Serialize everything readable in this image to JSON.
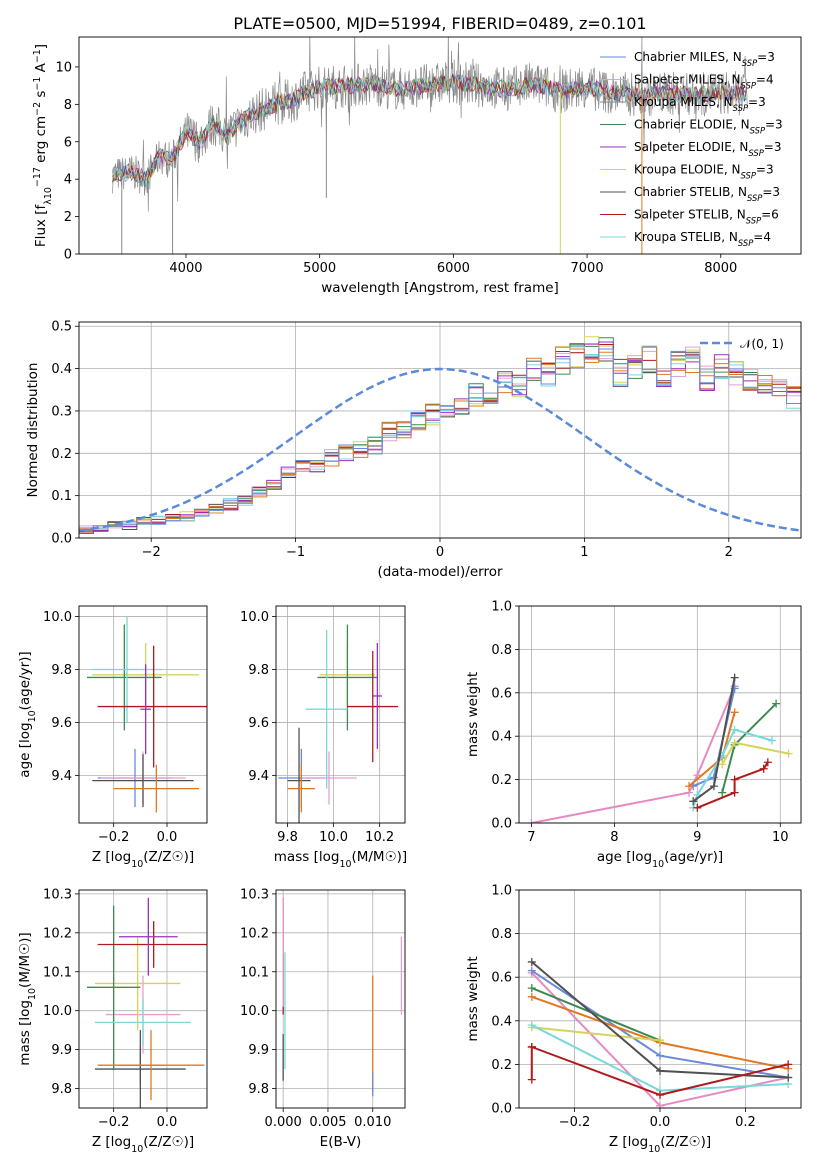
{
  "figure_title": "PLATE=0500, MJD=51994, FIBERID=0489, z=0.101",
  "colors": [
    "#6a8ad8",
    "#e6a0d0",
    "#8a8a8a",
    "#3c8a50",
    "#9a30c0",
    "#d4d45a",
    "#505050",
    "#b01a1a",
    "#7ad8d8"
  ],
  "chart_data": [
    {
      "id": "spectrum",
      "type": "line",
      "title": "PLATE=0500, MJD=51994, FIBERID=0489, z=0.101",
      "xlabel": "wavelength [Angstrom, rest frame]",
      "ylabel": "Flux [f_λ10^−17 erg cm^−2 s^−1 A^−1]",
      "xlim": [
        3200,
        8600
      ],
      "ylim": [
        0,
        11.6
      ],
      "xticks": [
        "4000",
        "5000",
        "6000",
        "7000",
        "8000"
      ],
      "yticks": [
        "0",
        "2",
        "4",
        "6",
        "8",
        "10"
      ],
      "legend_position": "upper right",
      "legend": [
        "Chabrier MILES, N_SSP=3",
        "Salpeter MILES, N_SSP=4",
        "Kroupa MILES, N_SSP=3",
        "Chabrier ELODIE, N_SSP=3",
        "Salpeter ELODIE, N_SSP=3",
        "Kroupa ELODIE, N_SSP=3",
        "Chabrier STELIB, N_SSP=3",
        "Salpeter STELIB, N_SSP=6",
        "Kroupa STELIB, N_SSP=4"
      ],
      "continuum": {
        "x": [
          3450,
          3600,
          3700,
          3800,
          3900,
          4000,
          4100,
          4200,
          4300,
          4400,
          4500,
          4600,
          4700,
          4800,
          4900,
          5000,
          5200,
          5400,
          5600,
          5800,
          6000,
          6200,
          6400,
          6600,
          6800,
          7000,
          7200,
          7400,
          7600,
          7800,
          8000,
          8200
        ],
        "y": [
          4.2,
          4.4,
          4.0,
          5.2,
          5.1,
          6.5,
          6.0,
          7.0,
          6.3,
          7.0,
          7.5,
          7.8,
          8.1,
          8.2,
          8.7,
          8.9,
          9.0,
          9.1,
          8.8,
          9.0,
          9.2,
          9.0,
          8.8,
          9.1,
          8.7,
          8.9,
          8.6,
          8.5,
          8.6,
          8.5,
          8.6,
          8.6
        ]
      }
    },
    {
      "id": "residuals",
      "type": "histogram",
      "xlabel": "(data-model)/error",
      "ylabel": "Normed distribution",
      "xlim": [
        -2.5,
        2.5
      ],
      "ylim": [
        0,
        0.51
      ],
      "xticks": [
        "−2",
        "−1",
        "0",
        "1",
        "2"
      ],
      "yticks": [
        "0.0",
        "0.1",
        "0.2",
        "0.3",
        "0.4",
        "0.5"
      ],
      "grid": true,
      "legend": [
        "𝒩(0, 1)"
      ],
      "legend_position": "upper right",
      "bin_width": 0.1,
      "bins_start": -2.5,
      "histogram": [
        0.02,
        0.02,
        0.03,
        0.03,
        0.04,
        0.04,
        0.05,
        0.05,
        0.06,
        0.07,
        0.08,
        0.09,
        0.11,
        0.13,
        0.15,
        0.17,
        0.17,
        0.19,
        0.2,
        0.21,
        0.22,
        0.25,
        0.25,
        0.28,
        0.29,
        0.3,
        0.31,
        0.34,
        0.33,
        0.37,
        0.36,
        0.4,
        0.39,
        0.42,
        0.43,
        0.44,
        0.45,
        0.39,
        0.4,
        0.42,
        0.38,
        0.41,
        0.42,
        0.38,
        0.4,
        0.39,
        0.38,
        0.36,
        0.35,
        0.33,
        0.31,
        0.3,
        0.27,
        0.27,
        0.24,
        0.24,
        0.21,
        0.18,
        0.17,
        0.15,
        0.14,
        0.13,
        0.11,
        0.1,
        0.09,
        0.07,
        0.07,
        0.06,
        0.05,
        0.04,
        0.04,
        0.03,
        0.03,
        0.02,
        0.02
      ]
    },
    {
      "id": "age_vs_Z",
      "type": "errorbar",
      "xlabel": "Z [log10(Z/Z☉)]",
      "ylabel": "age [log10(age/yr)]",
      "xlim": [
        -0.33,
        0.15
      ],
      "ylim": [
        9.22,
        10.04
      ],
      "xticks": [
        "−0.2",
        "0.0"
      ],
      "yticks": [
        "9.4",
        "9.6",
        "9.8",
        "10.0"
      ],
      "grid": true,
      "points": [
        {
          "x": -0.12,
          "xerr": 0.14,
          "y": 9.39,
          "yerr": 0.11,
          "color": "#6a8ad8"
        },
        {
          "x": -0.09,
          "xerr": 0.16,
          "y": 9.39,
          "yerr": 0.1,
          "color": "#e6a0d0"
        },
        {
          "x": -0.08,
          "xerr": 0.2,
          "y": 9.78,
          "yerr": 0.12,
          "color": "#d4d45a"
        },
        {
          "x": -0.16,
          "xerr": 0.14,
          "y": 9.77,
          "yerr": 0.2,
          "color": "#3c8a50"
        },
        {
          "x": -0.15,
          "xerr": 0.13,
          "y": 9.8,
          "yerr": 0.2,
          "color": "#7ad8d8"
        },
        {
          "x": -0.05,
          "xerr": 0.21,
          "y": 9.66,
          "yerr": 0.23,
          "color": "#b01a1a"
        },
        {
          "x": -0.09,
          "xerr": 0.19,
          "y": 9.38,
          "yerr": 0.1,
          "color": "#505050"
        },
        {
          "x": -0.04,
          "xerr": 0.16,
          "y": 9.35,
          "yerr": 0.09,
          "color": "#e07820"
        },
        {
          "x": -0.08,
          "xerr": 0.02,
          "y": 9.65,
          "yerr": 0.17,
          "color": "#9a30c0"
        }
      ]
    },
    {
      "id": "age_vs_mass",
      "type": "errorbar",
      "xlabel": "mass [log10(M/M☉)]",
      "ylabel": "",
      "xlim": [
        9.75,
        10.31
      ],
      "ylim": [
        9.22,
        10.04
      ],
      "xticks": [
        "9.8",
        "10.0",
        "10.2"
      ],
      "yticks": [
        "9.4",
        "9.6",
        "9.8",
        "10.0"
      ],
      "grid": true,
      "points": [
        {
          "x": 9.86,
          "xerr": 0.1,
          "y": 9.39,
          "yerr": 0.11,
          "color": "#6a8ad8"
        },
        {
          "x": 9.98,
          "xerr": 0.12,
          "y": 9.39,
          "yerr": 0.1,
          "color": "#e6a0d0"
        },
        {
          "x": 10.06,
          "xerr": 0.12,
          "y": 9.78,
          "yerr": 0.12,
          "color": "#d4d45a"
        },
        {
          "x": 10.06,
          "xerr": 0.13,
          "y": 9.77,
          "yerr": 0.2,
          "color": "#3c8a50"
        },
        {
          "x": 9.97,
          "xerr": 0.09,
          "y": 9.65,
          "yerr": 0.3,
          "color": "#7ad8d8"
        },
        {
          "x": 10.17,
          "xerr": 0.11,
          "y": 9.66,
          "yerr": 0.21,
          "color": "#b01a1a"
        },
        {
          "x": 9.85,
          "xerr": 0.05,
          "y": 9.38,
          "yerr": 0.2,
          "color": "#505050"
        },
        {
          "x": 9.86,
          "xerr": 0.06,
          "y": 9.35,
          "yerr": 0.09,
          "color": "#e07820"
        },
        {
          "x": 10.19,
          "xerr": 0.02,
          "y": 9.7,
          "yerr": 0.2,
          "color": "#9a30c0"
        }
      ]
    },
    {
      "id": "weight_vs_age",
      "type": "line",
      "xlabel": "age [log10(age/yr)]",
      "ylabel": "mass weight",
      "xlim": [
        6.85,
        10.25
      ],
      "ylim": [
        0,
        1.0
      ],
      "xticks": [
        "7",
        "8",
        "9",
        "10"
      ],
      "yticks": [
        "0.0",
        "0.2",
        "0.4",
        "0.6",
        "0.8",
        "1.0"
      ],
      "grid": true,
      "series": [
        {
          "color": "#e68ac2",
          "x": [
            7.0,
            8.9,
            9.0,
            9.45
          ],
          "y": [
            0.0,
            0.14,
            0.22,
            0.63
          ]
        },
        {
          "color": "#6a8ad8",
          "x": [
            8.95,
            9.2,
            9.45
          ],
          "y": [
            0.17,
            0.21,
            0.62
          ]
        },
        {
          "color": "#e07820",
          "x": [
            8.9,
            9.3,
            9.45
          ],
          "y": [
            0.17,
            0.3,
            0.51
          ]
        },
        {
          "color": "#3c8a50",
          "x": [
            9.3,
            9.45,
            9.95
          ],
          "y": [
            0.14,
            0.36,
            0.55
          ]
        },
        {
          "color": "#d4d45a",
          "x": [
            9.3,
            9.45,
            10.1
          ],
          "y": [
            0.27,
            0.37,
            0.32
          ]
        },
        {
          "color": "#7ad8d8",
          "x": [
            8.95,
            9.0,
            9.3,
            9.45,
            9.9
          ],
          "y": [
            0.07,
            0.13,
            0.31,
            0.43,
            0.38
          ]
        },
        {
          "color": "#505050",
          "x": [
            8.95,
            9.2,
            9.45
          ],
          "y": [
            0.1,
            0.17,
            0.67
          ]
        },
        {
          "color": "#b01a1a",
          "x": [
            9.0,
            9.45,
            9.45,
            9.8,
            9.85
          ],
          "y": [
            0.07,
            0.14,
            0.2,
            0.25,
            0.28
          ]
        }
      ]
    },
    {
      "id": "mass_vs_Z",
      "type": "errorbar",
      "xlabel": "Z [log10(Z/Z☉)]",
      "ylabel": "mass [log10(M/M☉)]",
      "xlim": [
        -0.33,
        0.15
      ],
      "ylim": [
        9.75,
        10.31
      ],
      "xticks": [
        "−0.2",
        "0.0"
      ],
      "yticks": [
        "9.8",
        "9.9",
        "10.0",
        "10.1",
        "10.2",
        "10.3"
      ],
      "grid": true,
      "points": [
        {
          "x": -0.1,
          "xerr": 0.09,
          "y": 9.86,
          "yerr": 0.05,
          "color": "#6a8ad8"
        },
        {
          "x": -0.09,
          "xerr": 0.14,
          "y": 9.99,
          "yerr": 0.1,
          "color": "#e6a0d0"
        },
        {
          "x": -0.11,
          "xerr": 0.16,
          "y": 10.07,
          "yerr": 0.12,
          "color": "#d4d45a"
        },
        {
          "x": -0.2,
          "xerr": 0.1,
          "y": 10.06,
          "yerr": 0.21,
          "color": "#3c8a50"
        },
        {
          "x": -0.09,
          "xerr": 0.18,
          "y": 9.97,
          "yerr": 0.06,
          "color": "#7ad8d8"
        },
        {
          "x": -0.05,
          "xerr": 0.21,
          "y": 10.17,
          "yerr": 0.06,
          "color": "#b01a1a"
        },
        {
          "x": -0.1,
          "xerr": 0.17,
          "y": 9.85,
          "yerr": 0.1,
          "color": "#505050"
        },
        {
          "x": -0.06,
          "xerr": 0.2,
          "y": 9.86,
          "yerr": 0.09,
          "color": "#e07820"
        },
        {
          "x": -0.07,
          "xerr": 0.11,
          "y": 10.19,
          "yerr": 0.1,
          "color": "#9a30c0"
        }
      ]
    },
    {
      "id": "mass_vs_EBV",
      "type": "errorbar",
      "xlabel": "E(B-V)",
      "ylabel": "",
      "xlim": [
        -0.0008,
        0.0136
      ],
      "ylim": [
        9.75,
        10.31
      ],
      "xticks": [
        "0.000",
        "0.005",
        "0.010"
      ],
      "yticks": [
        "9.8",
        "9.9",
        "10.0",
        "10.1",
        "10.2",
        "10.3"
      ],
      "grid": true,
      "points": [
        {
          "x": 0.0,
          "y": 10.14,
          "yerr": 0.15,
          "color": "#b01a1a"
        },
        {
          "x": 0.0,
          "y": 10.15,
          "yerr": 0.14,
          "color": "#e6a0d0"
        },
        {
          "x": 0.0,
          "y": 9.88,
          "yerr": 0.06,
          "color": "#505050"
        },
        {
          "x": 0.0002,
          "y": 10.0,
          "yerr": 0.15,
          "color": "#7ad8d8"
        },
        {
          "x": 0.01,
          "y": 9.94,
          "yerr": 0.15,
          "color": "#e07820"
        },
        {
          "x": 0.01,
          "y": 9.81,
          "yerr": 0.03,
          "color": "#6a8ad8"
        },
        {
          "x": 0.0132,
          "y": 10.09,
          "yerr": 0.1,
          "color": "#e6a0d0"
        }
      ]
    },
    {
      "id": "weight_vs_Z",
      "type": "line",
      "xlabel": "Z [log10(Z/Z☉)]",
      "ylabel": "mass weight",
      "xlim": [
        -0.33,
        0.33
      ],
      "ylim": [
        0,
        1.0
      ],
      "xticks": [
        "−0.2",
        "0.0",
        "0.2"
      ],
      "yticks": [
        "0.0",
        "0.2",
        "0.4",
        "0.6",
        "0.8",
        "1.0"
      ],
      "grid": true,
      "series": [
        {
          "color": "#e68ac2",
          "x": [
            -0.3,
            0.0,
            0.3
          ],
          "y": [
            0.62,
            0.01,
            0.14
          ]
        },
        {
          "color": "#6a8ad8",
          "x": [
            -0.3,
            0.0,
            0.3
          ],
          "y": [
            0.63,
            0.24,
            0.14
          ]
        },
        {
          "color": "#e07820",
          "x": [
            -0.3,
            0.0,
            0.3
          ],
          "y": [
            0.51,
            0.3,
            0.18
          ]
        },
        {
          "color": "#3c8a50",
          "x": [
            -0.3,
            0.0
          ],
          "y": [
            0.55,
            0.31
          ]
        },
        {
          "color": "#d4d45a",
          "x": [
            -0.3,
            0.0
          ],
          "y": [
            0.37,
            0.31
          ]
        },
        {
          "color": "#7ad8d8",
          "x": [
            -0.3,
            0.0,
            0.3
          ],
          "y": [
            0.38,
            0.08,
            0.11
          ]
        },
        {
          "color": "#505050",
          "x": [
            -0.3,
            0.0,
            0.3
          ],
          "y": [
            0.67,
            0.17,
            0.14
          ]
        },
        {
          "color": "#b01a1a",
          "x": [
            -0.3,
            0.0,
            0.3
          ],
          "y": [
            0.28,
            0.06,
            0.2
          ]
        },
        {
          "color": "#b01a1a",
          "x": [
            -0.3,
            -0.3
          ],
          "y": [
            0.13,
            0.28
          ]
        }
      ]
    }
  ]
}
